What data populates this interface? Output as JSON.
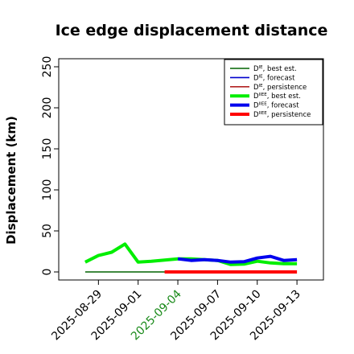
{
  "chart_data": {
    "type": "line",
    "title": "Ice edge displacement distance",
    "xlabel": "",
    "ylabel": "Displacement (km)",
    "ylim": [
      0,
      260
    ],
    "yticks": [
      0,
      50,
      100,
      150,
      200,
      250
    ],
    "xlim": [
      "2025-08-26",
      "2025-09-15"
    ],
    "xticks": [
      {
        "label": "2025-08-29",
        "date": "2025-08-29",
        "color": "#000000"
      },
      {
        "label": "2025-09-01",
        "date": "2025-09-01",
        "color": "#000000"
      },
      {
        "label": "2025-09-04",
        "date": "2025-09-04",
        "color": "#1a8a1a"
      },
      {
        "label": "2025-09-07",
        "date": "2025-09-07",
        "color": "#000000"
      },
      {
        "label": "2025-09-10",
        "date": "2025-09-10",
        "color": "#000000"
      },
      {
        "label": "2025-09-13",
        "date": "2025-09-13",
        "color": "#000000"
      }
    ],
    "legend_position": "top-right",
    "series": [
      {
        "name": "D^IE, best est.",
        "sup": "IE",
        "suffix": ", best est.",
        "color": "#006400",
        "width": 1.6,
        "x": [
          "2025-08-28",
          "2025-08-29",
          "2025-08-30",
          "2025-08-31",
          "2025-09-01",
          "2025-09-02",
          "2025-09-03",
          "2025-09-04"
        ],
        "y": [
          0,
          0,
          0,
          0,
          0,
          0,
          0,
          0
        ]
      },
      {
        "name": "D^IE, forecast",
        "sup": "IE",
        "suffix": ", forecast",
        "color": "#0000cd",
        "width": 1.6,
        "x": [],
        "y": []
      },
      {
        "name": "D^IE, persistence",
        "sup": "IE",
        "suffix": ", persistence",
        "color": "#b22222",
        "width": 1.6,
        "x": [],
        "y": []
      },
      {
        "name": "D^IIEE, best est.",
        "sup": "IIEE",
        "suffix": ", best est.",
        "color": "#00ee00",
        "width": 4,
        "x": [
          "2025-08-28",
          "2025-08-29",
          "2025-08-30",
          "2025-08-31",
          "2025-09-01",
          "2025-09-02",
          "2025-09-03",
          "2025-09-04",
          "2025-09-05",
          "2025-09-06",
          "2025-09-07",
          "2025-09-08",
          "2025-09-09",
          "2025-09-10",
          "2025-09-11",
          "2025-09-12",
          "2025-09-13"
        ],
        "y": [
          12,
          20,
          24,
          34,
          12,
          13,
          14.5,
          16,
          16,
          15,
          14,
          9,
          9.5,
          13,
          11,
          10,
          10
        ]
      },
      {
        "name": "D^IIEE, forecast",
        "sup": "IIEE",
        "suffix": ", forecast",
        "color": "#0000ee",
        "width": 4,
        "x": [
          "2025-09-04",
          "2025-09-05",
          "2025-09-06",
          "2025-09-07",
          "2025-09-08",
          "2025-09-09",
          "2025-09-10",
          "2025-09-11",
          "2025-09-12",
          "2025-09-13"
        ],
        "y": [
          16,
          14,
          15,
          14,
          12,
          12.5,
          17,
          19,
          14,
          15
        ]
      },
      {
        "name": "D^IIEE, persistence",
        "sup": "IIEE",
        "suffix": ", persistence",
        "color": "#ff0000",
        "width": 4,
        "x": [
          "2025-09-03",
          "2025-09-04",
          "2025-09-05",
          "2025-09-06",
          "2025-09-07",
          "2025-09-08",
          "2025-09-09",
          "2025-09-10",
          "2025-09-11",
          "2025-09-12",
          "2025-09-13"
        ],
        "y": [
          0,
          0,
          0,
          0,
          0,
          0,
          0,
          0,
          0,
          0,
          0
        ]
      }
    ]
  }
}
